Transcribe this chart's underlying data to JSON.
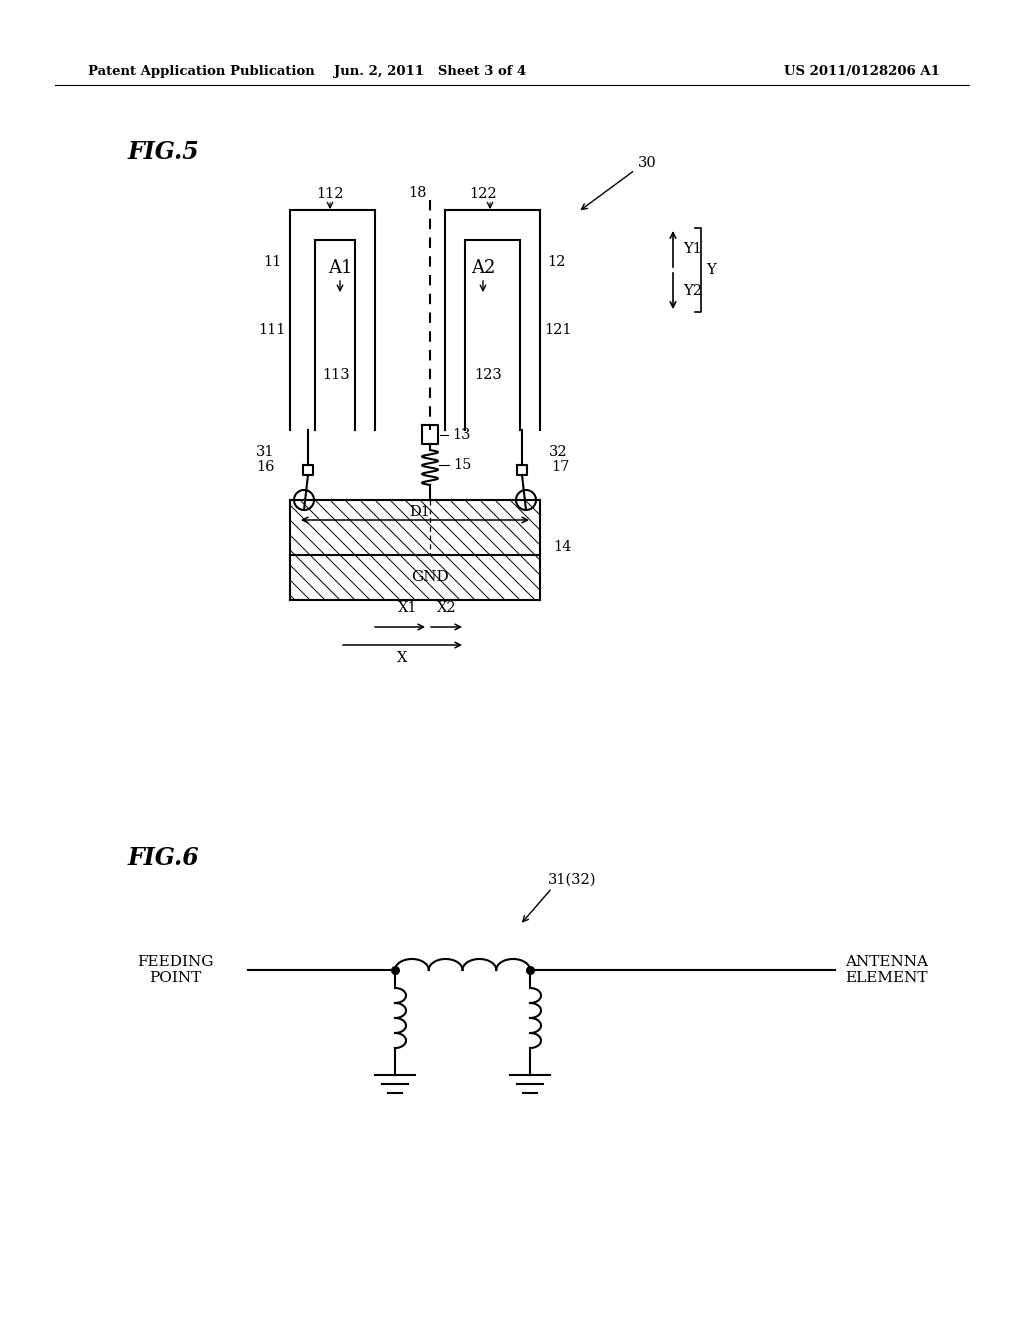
{
  "bg_color": "#ffffff",
  "line_color": "#000000",
  "header_left": "Patent Application Publication",
  "header_center": "Jun. 2, 2011   Sheet 3 of 4",
  "header_right": "US 2011/0128206 A1",
  "fig5_label": "FIG.5",
  "fig6_label": "FIG.6",
  "fig5_note": "30",
  "fig6_note": "31(32)",
  "feeding_point_label": "FEEDING\nPOINT",
  "antenna_element_label": "ANTENNA\nELEMENT"
}
